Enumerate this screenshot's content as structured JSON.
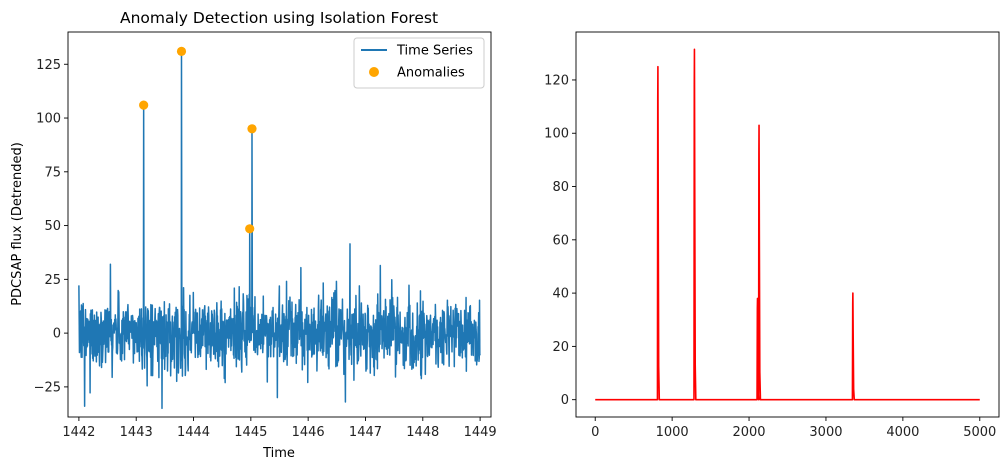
{
  "chart_data": [
    {
      "type": "line",
      "title": "Anomaly Detection using Isolation Forest",
      "xlabel": "Time",
      "ylabel": "PDCSAP flux (Detrended)",
      "xlim": [
        1441.81,
        1449.19
      ],
      "ylim": [
        -39,
        140
      ],
      "xticks": [
        1442,
        1443,
        1444,
        1445,
        1446,
        1447,
        1448,
        1449
      ],
      "yticks": [
        -25,
        0,
        25,
        50,
        75,
        100,
        125
      ],
      "legend_position": "top-right",
      "colors": {
        "series": "#1f77b4",
        "anomalies": "#ffa500"
      },
      "series": [
        {
          "name": "Time Series",
          "x_range": [
            1442.0,
            1449.0
          ],
          "noise_band": [
            -30,
            32
          ],
          "spikes": [
            {
              "x": 1443.13,
              "y": 106
            },
            {
              "x": 1443.79,
              "y": 131
            },
            {
              "x": 1444.98,
              "y": 48
            },
            {
              "x": 1445.02,
              "y": 95
            },
            {
              "x": 1446.73,
              "y": 41.5
            },
            {
              "x": 1442.55,
              "y": 32
            },
            {
              "x": 1442.1,
              "y": -34
            },
            {
              "x": 1443.45,
              "y": -35
            },
            {
              "x": 1446.65,
              "y": -32
            }
          ]
        }
      ],
      "anomalies": {
        "name": "Anomalies",
        "points": [
          {
            "x": 1443.13,
            "y": 106
          },
          {
            "x": 1443.79,
            "y": 131
          },
          {
            "x": 1444.98,
            "y": 48.5
          },
          {
            "x": 1445.02,
            "y": 95
          }
        ]
      }
    },
    {
      "type": "line",
      "title": "",
      "xlabel": "",
      "ylabel": "",
      "xlim": [
        -250,
        5250
      ],
      "ylim": [
        -6.5,
        138
      ],
      "xticks": [
        0,
        1000,
        2000,
        3000,
        4000,
        5000
      ],
      "yticks": [
        0,
        20,
        40,
        60,
        80,
        100,
        120
      ],
      "colors": {
        "series": "#ff0000"
      },
      "series": [
        {
          "x_range": [
            0,
            5000
          ],
          "baseline": 0,
          "peaks": [
            {
              "x": 815,
              "y": 125
            },
            {
              "x": 1290,
              "y": 131.5
            },
            {
              "x": 2110,
              "y": 38
            },
            {
              "x": 2130,
              "y": 103
            },
            {
              "x": 3350,
              "y": 40
            }
          ]
        }
      ]
    }
  ]
}
